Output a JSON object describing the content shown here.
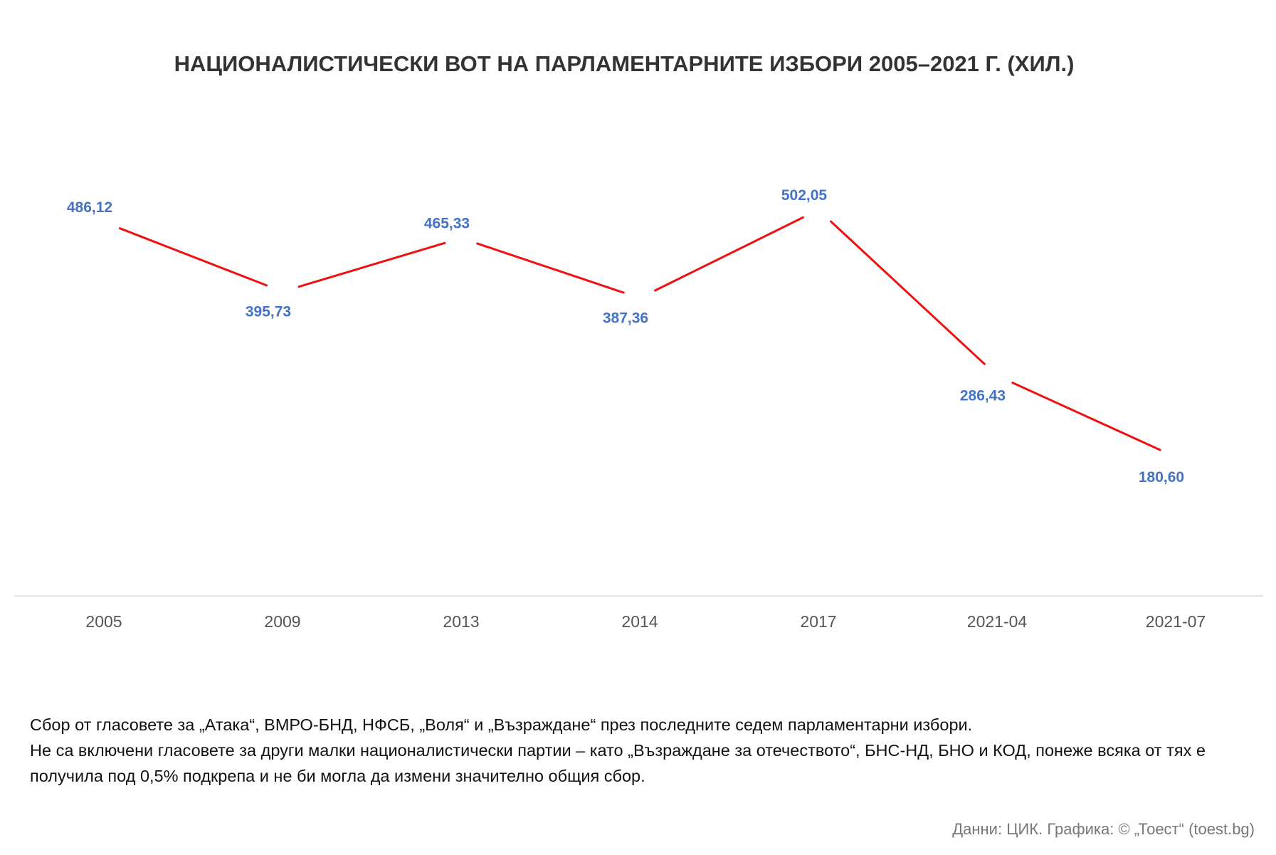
{
  "chart_data": {
    "type": "line",
    "title": "НАЦИОНАЛИСТИЧЕСКИ ВОТ НА ПАРЛАМЕНТАРНИТЕ ИЗБОРИ 2005–2021 Г. (ХИЛ.)",
    "categories": [
      "2005",
      "2009",
      "2013",
      "2014",
      "2017",
      "2021-04",
      "2021-07"
    ],
    "series": [
      {
        "values": [
          486.12,
          395.73,
          465.33,
          387.36,
          502.05,
          286.43,
          180.6
        ],
        "labels": [
          "486,12",
          "395,73",
          "465,33",
          "387,36",
          "502,05",
          "286,43",
          "180,60"
        ],
        "color": "#ee1111",
        "label_color": "#4472c4"
      }
    ],
    "xlabel": "",
    "ylabel": "",
    "grid": false,
    "legend": "none"
  },
  "notes": {
    "line1": "Сбор от гласовете за „Атака“, ВМРО-БНД, НФСБ, „Воля“ и „Възраждане“ през последните седем парламентарни избори.",
    "line2": "Не са включени гласовете за други малки националистически партии – като „Възраждане за отечеството“, БНС-НД, БНО и КОД, понеже всяка от тях е получила под 0,5% подкрепа и не би могла да измени значително общия сбор."
  },
  "source": "Данни: ЦИК. Графика: © „Тоест“ (toest.bg)",
  "colors": {
    "line": "#ee1111",
    "data_label": "#4472c4",
    "axis": "#d9d9d9",
    "title": "#333333"
  }
}
